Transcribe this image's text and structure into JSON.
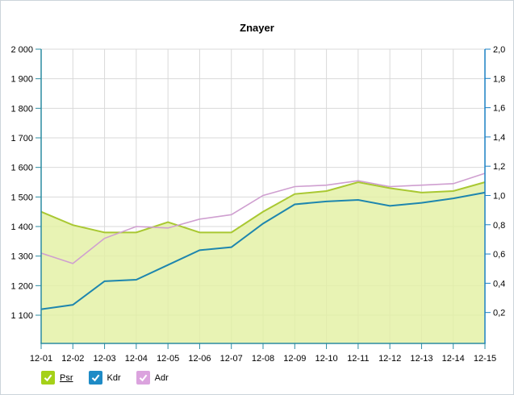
{
  "title": "Znayer",
  "legend": {
    "items": [
      {
        "label": "Psr",
        "color": "#a5d118",
        "underline": true
      },
      {
        "label": "Kdr",
        "color": "#1e8bc6",
        "underline": false
      },
      {
        "label": "Adr",
        "color": "#dba3de",
        "underline": false
      }
    ]
  },
  "chart_data": {
    "type": "area",
    "title": "Znayer",
    "categories": [
      "12-01",
      "12-02",
      "12-03",
      "12-04",
      "12-05",
      "12-06",
      "12-07",
      "12-08",
      "12-09",
      "12-10",
      "12-11",
      "12-12",
      "12-13",
      "12-14",
      "12-15"
    ],
    "series": [
      {
        "name": "Psr",
        "kind": "area",
        "line_color": "#a9c832",
        "fill_color": "#e3f0a3",
        "values": [
          1450,
          1405,
          1380,
          1380,
          1415,
          1380,
          1380,
          1450,
          1510,
          1520,
          1550,
          1530,
          1515,
          1520,
          1550
        ]
      },
      {
        "name": "Adr",
        "kind": "line",
        "line_color": "#cf9fd0",
        "values": [
          1310,
          1275,
          1360,
          1400,
          1395,
          1425,
          1440,
          1505,
          1535,
          1540,
          1555,
          1535,
          1540,
          1545,
          1580
        ]
      },
      {
        "name": "Kdr",
        "kind": "line",
        "line_color": "#1e86ae",
        "values": [
          1120,
          1135,
          1215,
          1220,
          1270,
          1320,
          1330,
          1410,
          1475,
          1485,
          1490,
          1470,
          1480,
          1495,
          1515
        ]
      }
    ],
    "left_axis": {
      "color": "#2b8ba1",
      "min": 1000,
      "max": 2000,
      "tick_values": [
        1100,
        1200,
        1300,
        1400,
        1500,
        1600,
        1700,
        1800,
        1900,
        2000
      ],
      "tick_labels": [
        "1 100",
        "1 200",
        "1 300",
        "1 400",
        "1 500",
        "1 600",
        "1 700",
        "1 800",
        "1 900",
        "2 000"
      ]
    },
    "right_axis": {
      "color": "#1b80c4",
      "min": 0,
      "max": 2,
      "tick_values": [
        0.2,
        0.4,
        0.6,
        0.8,
        1.0,
        1.2,
        1.4,
        1.6,
        1.8,
        2.0
      ],
      "tick_labels": [
        "0,2",
        "0,4",
        "0,6",
        "0,8",
        "1,0",
        "1,2",
        "1,4",
        "1,6",
        "1,8",
        "2,0"
      ]
    },
    "x_axis": {
      "color": "#2b8ba1"
    },
    "grid": true,
    "grid_color": "#d9d9d9",
    "legend_position": "bottom"
  }
}
